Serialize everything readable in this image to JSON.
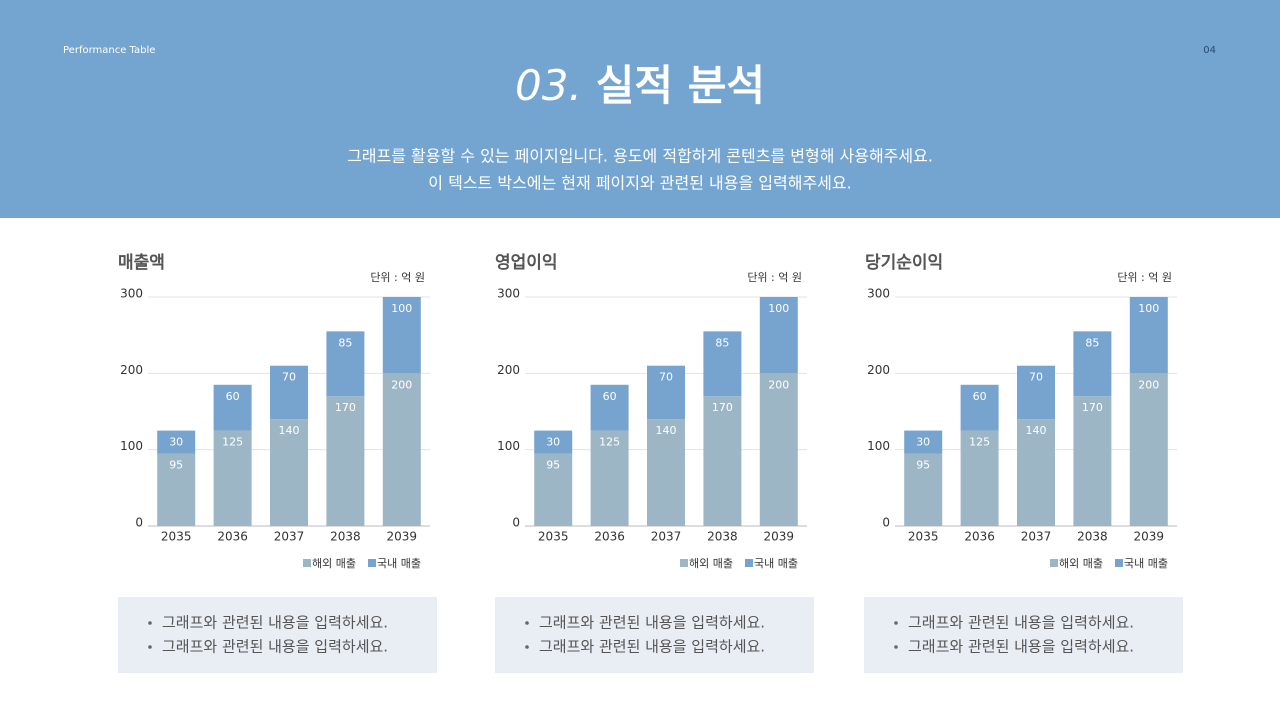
{
  "header": {
    "label": "Performance Table",
    "page": "04",
    "title_num": "03.",
    "title": "실적 분석",
    "description": [
      "그래프를 활용할 수 있는 페이지입니다. 용도에 적합하게 콘텐츠를 변형해 사용해주세요.",
      "이 텍스트 박스에는 현재 페이지와 관련된 내용을 입력해주세요."
    ]
  },
  "chart_data": [
    {
      "type": "bar",
      "stacked": true,
      "title": "매출액",
      "unit": "단위 : 억 원",
      "categories": [
        "2035",
        "2036",
        "2037",
        "2038",
        "2039"
      ],
      "series": [
        {
          "name": "해외 매출",
          "color": "#9db6c6",
          "values": [
            95,
            125,
            140,
            170,
            200
          ]
        },
        {
          "name": "국내 매출",
          "color": "#76a4cf",
          "values": [
            30,
            60,
            70,
            85,
            100
          ]
        }
      ],
      "ylim": [
        0,
        300
      ],
      "yticks": [
        0,
        100,
        200,
        300
      ],
      "grid": true
    },
    {
      "type": "bar",
      "stacked": true,
      "title": "영업이익",
      "unit": "단위 : 억 원",
      "categories": [
        "2035",
        "2036",
        "2037",
        "2038",
        "2039"
      ],
      "series": [
        {
          "name": "해외 매출",
          "color": "#9db6c6",
          "values": [
            95,
            125,
            140,
            170,
            200
          ]
        },
        {
          "name": "국내 매출",
          "color": "#76a4cf",
          "values": [
            30,
            60,
            70,
            85,
            100
          ]
        }
      ],
      "ylim": [
        0,
        300
      ],
      "yticks": [
        0,
        100,
        200,
        300
      ],
      "grid": true
    },
    {
      "type": "bar",
      "stacked": true,
      "title": "당기순이익",
      "unit": "단위 : 억 원",
      "categories": [
        "2035",
        "2036",
        "2037",
        "2038",
        "2039"
      ],
      "series": [
        {
          "name": "해외 매출",
          "color": "#9db6c6",
          "values": [
            95,
            125,
            140,
            170,
            200
          ]
        },
        {
          "name": "국내 매출",
          "color": "#76a4cf",
          "values": [
            30,
            60,
            70,
            85,
            100
          ]
        }
      ],
      "ylim": [
        0,
        300
      ],
      "yticks": [
        0,
        100,
        200,
        300
      ],
      "grid": true
    }
  ],
  "notes": [
    [
      "그래프와 관련된 내용을 입력하세요.",
      "그래프와 관련된 내용을 입력하세요."
    ],
    [
      "그래프와 관련된 내용을 입력하세요.",
      "그래프와 관련된 내용을 입력하세요."
    ],
    [
      "그래프와 관련된 내용을 입력하세요.",
      "그래프와 관련된 내용을 입력하세요."
    ]
  ]
}
